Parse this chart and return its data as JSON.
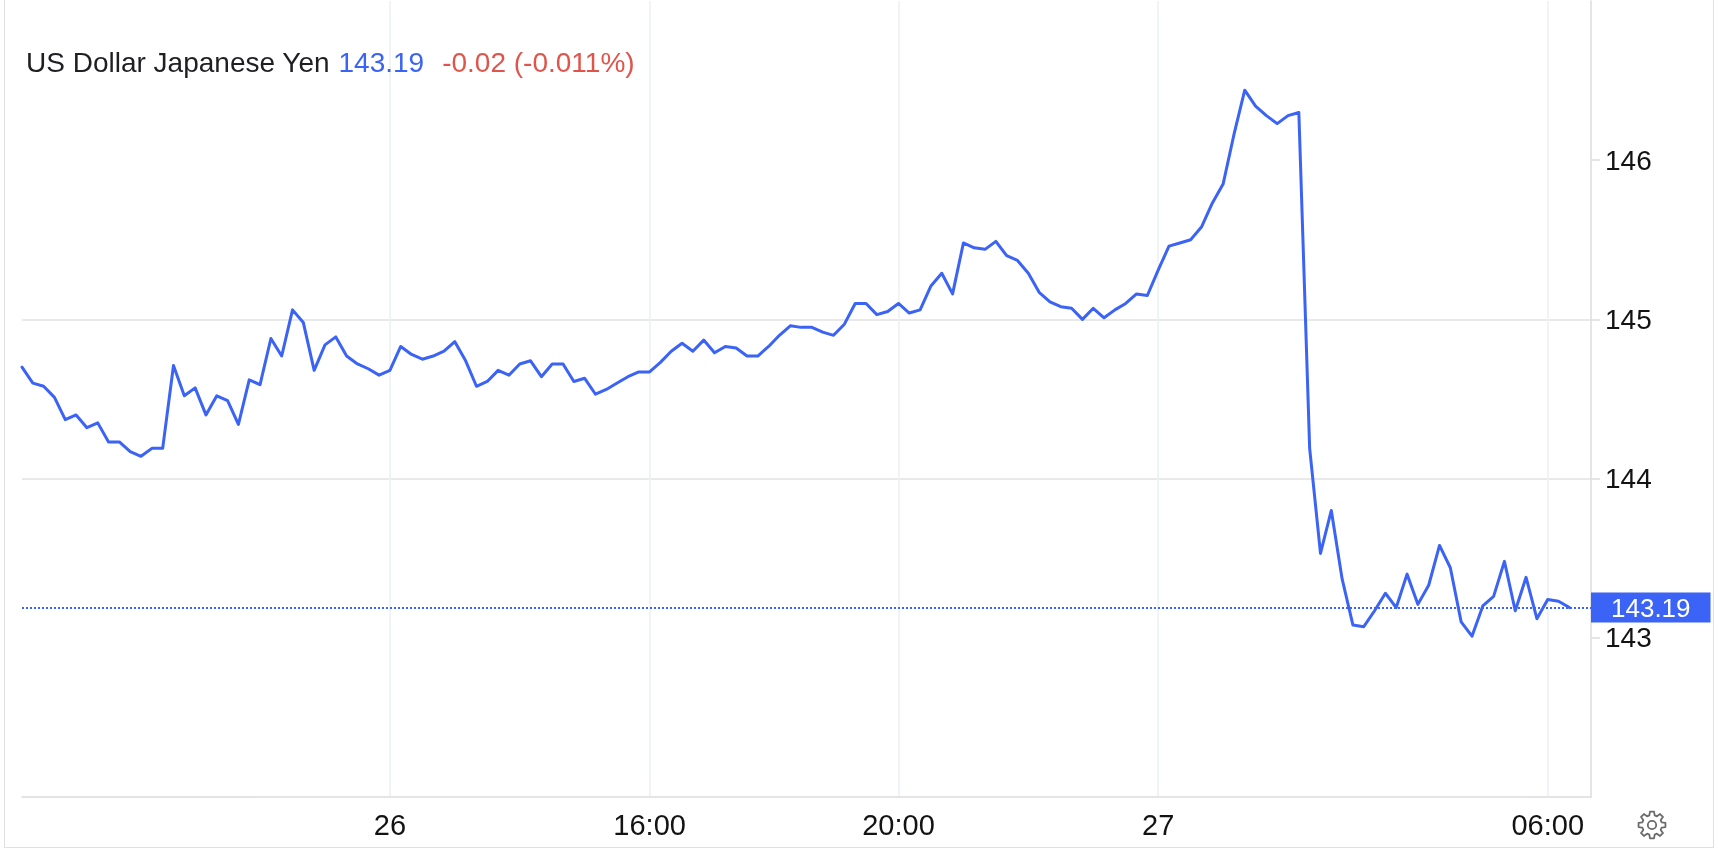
{
  "chart_data": {
    "type": "line",
    "title": "US Dollar Japanese Yen",
    "subtitle": "143.19",
    "annotations": [
      "-0.02 (-0.011%)"
    ],
    "categories": [
      null,
      null,
      null,
      null,
      null,
      null,
      null,
      null,
      null,
      null,
      null,
      null,
      null,
      null,
      null,
      null,
      null,
      null,
      null,
      null,
      null,
      null,
      null,
      null,
      null,
      null,
      null,
      null,
      null,
      null,
      null,
      null,
      null,
      null,
      "26",
      null,
      null,
      null,
      null,
      null,
      null,
      null,
      null,
      null,
      null,
      null,
      null,
      null,
      null,
      null,
      null,
      null,
      null,
      null,
      null,
      null,
      null,
      null,
      "16:00",
      null,
      null,
      null,
      null,
      null,
      null,
      null,
      null,
      null,
      null,
      null,
      null,
      null,
      null,
      null,
      null,
      null,
      null,
      null,
      null,
      null,
      null,
      "20:00",
      null,
      null,
      null,
      null,
      null,
      null,
      null,
      null,
      null,
      null,
      null,
      null,
      null,
      null,
      null,
      null,
      null,
      null,
      null,
      null,
      null,
      null,
      null,
      "27",
      null,
      null,
      null,
      null,
      null,
      null,
      null,
      null,
      null,
      null,
      null,
      null,
      null,
      null,
      null,
      null,
      null,
      null,
      null,
      null,
      null,
      null,
      null,
      null,
      null,
      null,
      null,
      null,
      null,
      null,
      null,
      null,
      null,
      null,
      null,
      "06:00",
      null,
      null,
      null,
      null
    ],
    "series": [
      {
        "color": "#3b63f5",
        "values": [
          144.7,
          144.6,
          144.58,
          144.51,
          144.37,
          144.4,
          144.32,
          144.35,
          144.23,
          144.23,
          144.17,
          144.14,
          144.19,
          144.19,
          144.71,
          144.52,
          144.57,
          144.4,
          144.52,
          144.49,
          144.34,
          144.62,
          144.59,
          144.88,
          144.77,
          145.06,
          144.98,
          144.68,
          144.84,
          144.89,
          144.77,
          144.72,
          144.69,
          144.65,
          144.68,
          144.83,
          144.78,
          144.75,
          144.77,
          144.8,
          144.86,
          144.74,
          144.58,
          144.61,
          144.68,
          144.65,
          144.72,
          144.74,
          144.64,
          144.72,
          144.72,
          144.61,
          144.63,
          144.53,
          144.56,
          144.6,
          144.64,
          144.67,
          144.67,
          144.73,
          144.8,
          144.85,
          144.8,
          144.87,
          144.79,
          144.83,
          144.82,
          144.77,
          144.77,
          144.83,
          144.9,
          144.96,
          144.95,
          144.95,
          144.92,
          144.9,
          144.97,
          145.1,
          145.1,
          145.03,
          145.05,
          145.1,
          145.04,
          145.06,
          145.21,
          145.29,
          145.16,
          145.48,
          145.45,
          145.44,
          145.49,
          145.4,
          145.37,
          145.29,
          145.17,
          145.11,
          145.08,
          145.07,
          145.0,
          145.07,
          145.01,
          145.06,
          145.1,
          145.16,
          145.15,
          145.31,
          145.46,
          145.48,
          145.5,
          145.58,
          145.73,
          145.85,
          146.16,
          146.44,
          146.34,
          146.28,
          146.23,
          146.28,
          146.3,
          144.19,
          143.53,
          143.8,
          143.37,
          143.08,
          143.07,
          143.17,
          143.28,
          143.19,
          143.4,
          143.21,
          143.33,
          143.58,
          143.44,
          143.1,
          143.01,
          143.2,
          143.26,
          143.48,
          143.17,
          143.38,
          143.12,
          143.24,
          143.23,
          143.19,
          null,
          null
        ]
      }
    ],
    "ylim": [
      142,
      147
    ],
    "yticks": [
      143,
      144,
      145,
      146
    ],
    "grid": true,
    "marker": "none",
    "line_style": "solid",
    "ref_lines": [
      {
        "axis": "y",
        "value": 143.19,
        "label": "143.19",
        "color": "#3b63f5",
        "line_style": "dotted"
      }
    ]
  }
}
